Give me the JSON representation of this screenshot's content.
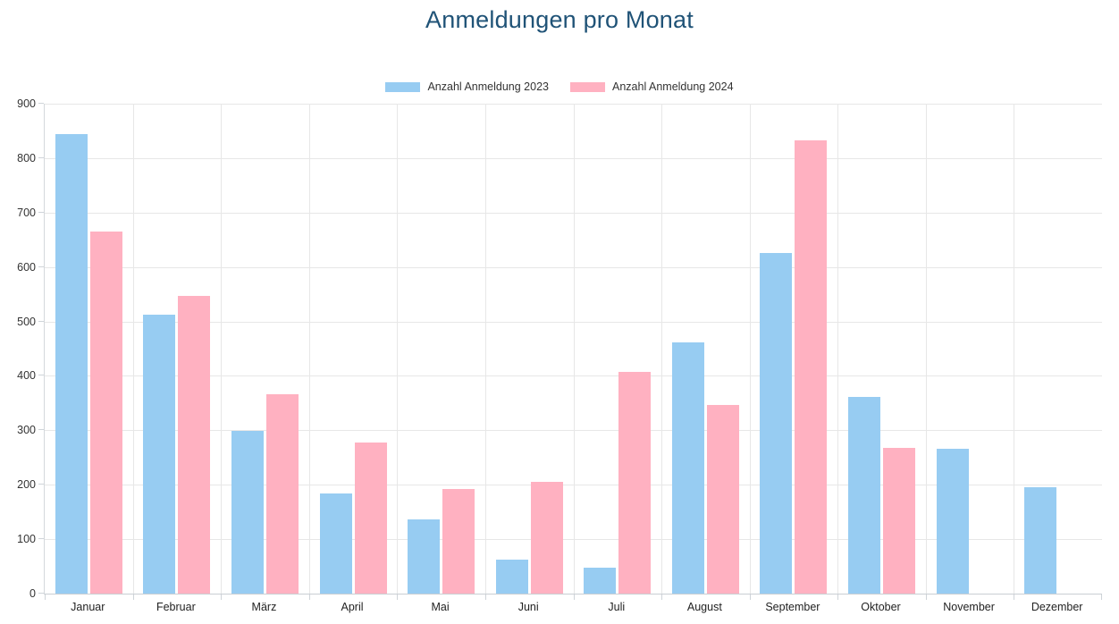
{
  "title": "Anmeldungen pro Monat",
  "colors": {
    "title": "#205377",
    "series_2023": "#97CCF2",
    "series_2024": "#FFB1C1",
    "grid": "#E7E7E7",
    "axis_line": "#CFD4D9",
    "axis_text": "#333333"
  },
  "chart_data": {
    "type": "bar",
    "title": "Anmeldungen pro Monat",
    "categories": [
      "Januar",
      "Februar",
      "März",
      "April",
      "Mai",
      "Juni",
      "Juli",
      "August",
      "September",
      "Oktober",
      "November",
      "Dezember"
    ],
    "series": [
      {
        "name": "Anzahl Anmeldung 2023",
        "color": "#97CCF2",
        "values": [
          844,
          512,
          299,
          184,
          136,
          63,
          48,
          462,
          626,
          362,
          266,
          195
        ]
      },
      {
        "name": "Anzahl Anmeldung 2024",
        "color": "#FFB1C1",
        "values": [
          665,
          547,
          366,
          277,
          192,
          205,
          408,
          347,
          832,
          267,
          0,
          0
        ]
      }
    ],
    "ylim": [
      0,
      900
    ],
    "ytick_step": 100,
    "grid": true,
    "legend_position": "top"
  }
}
